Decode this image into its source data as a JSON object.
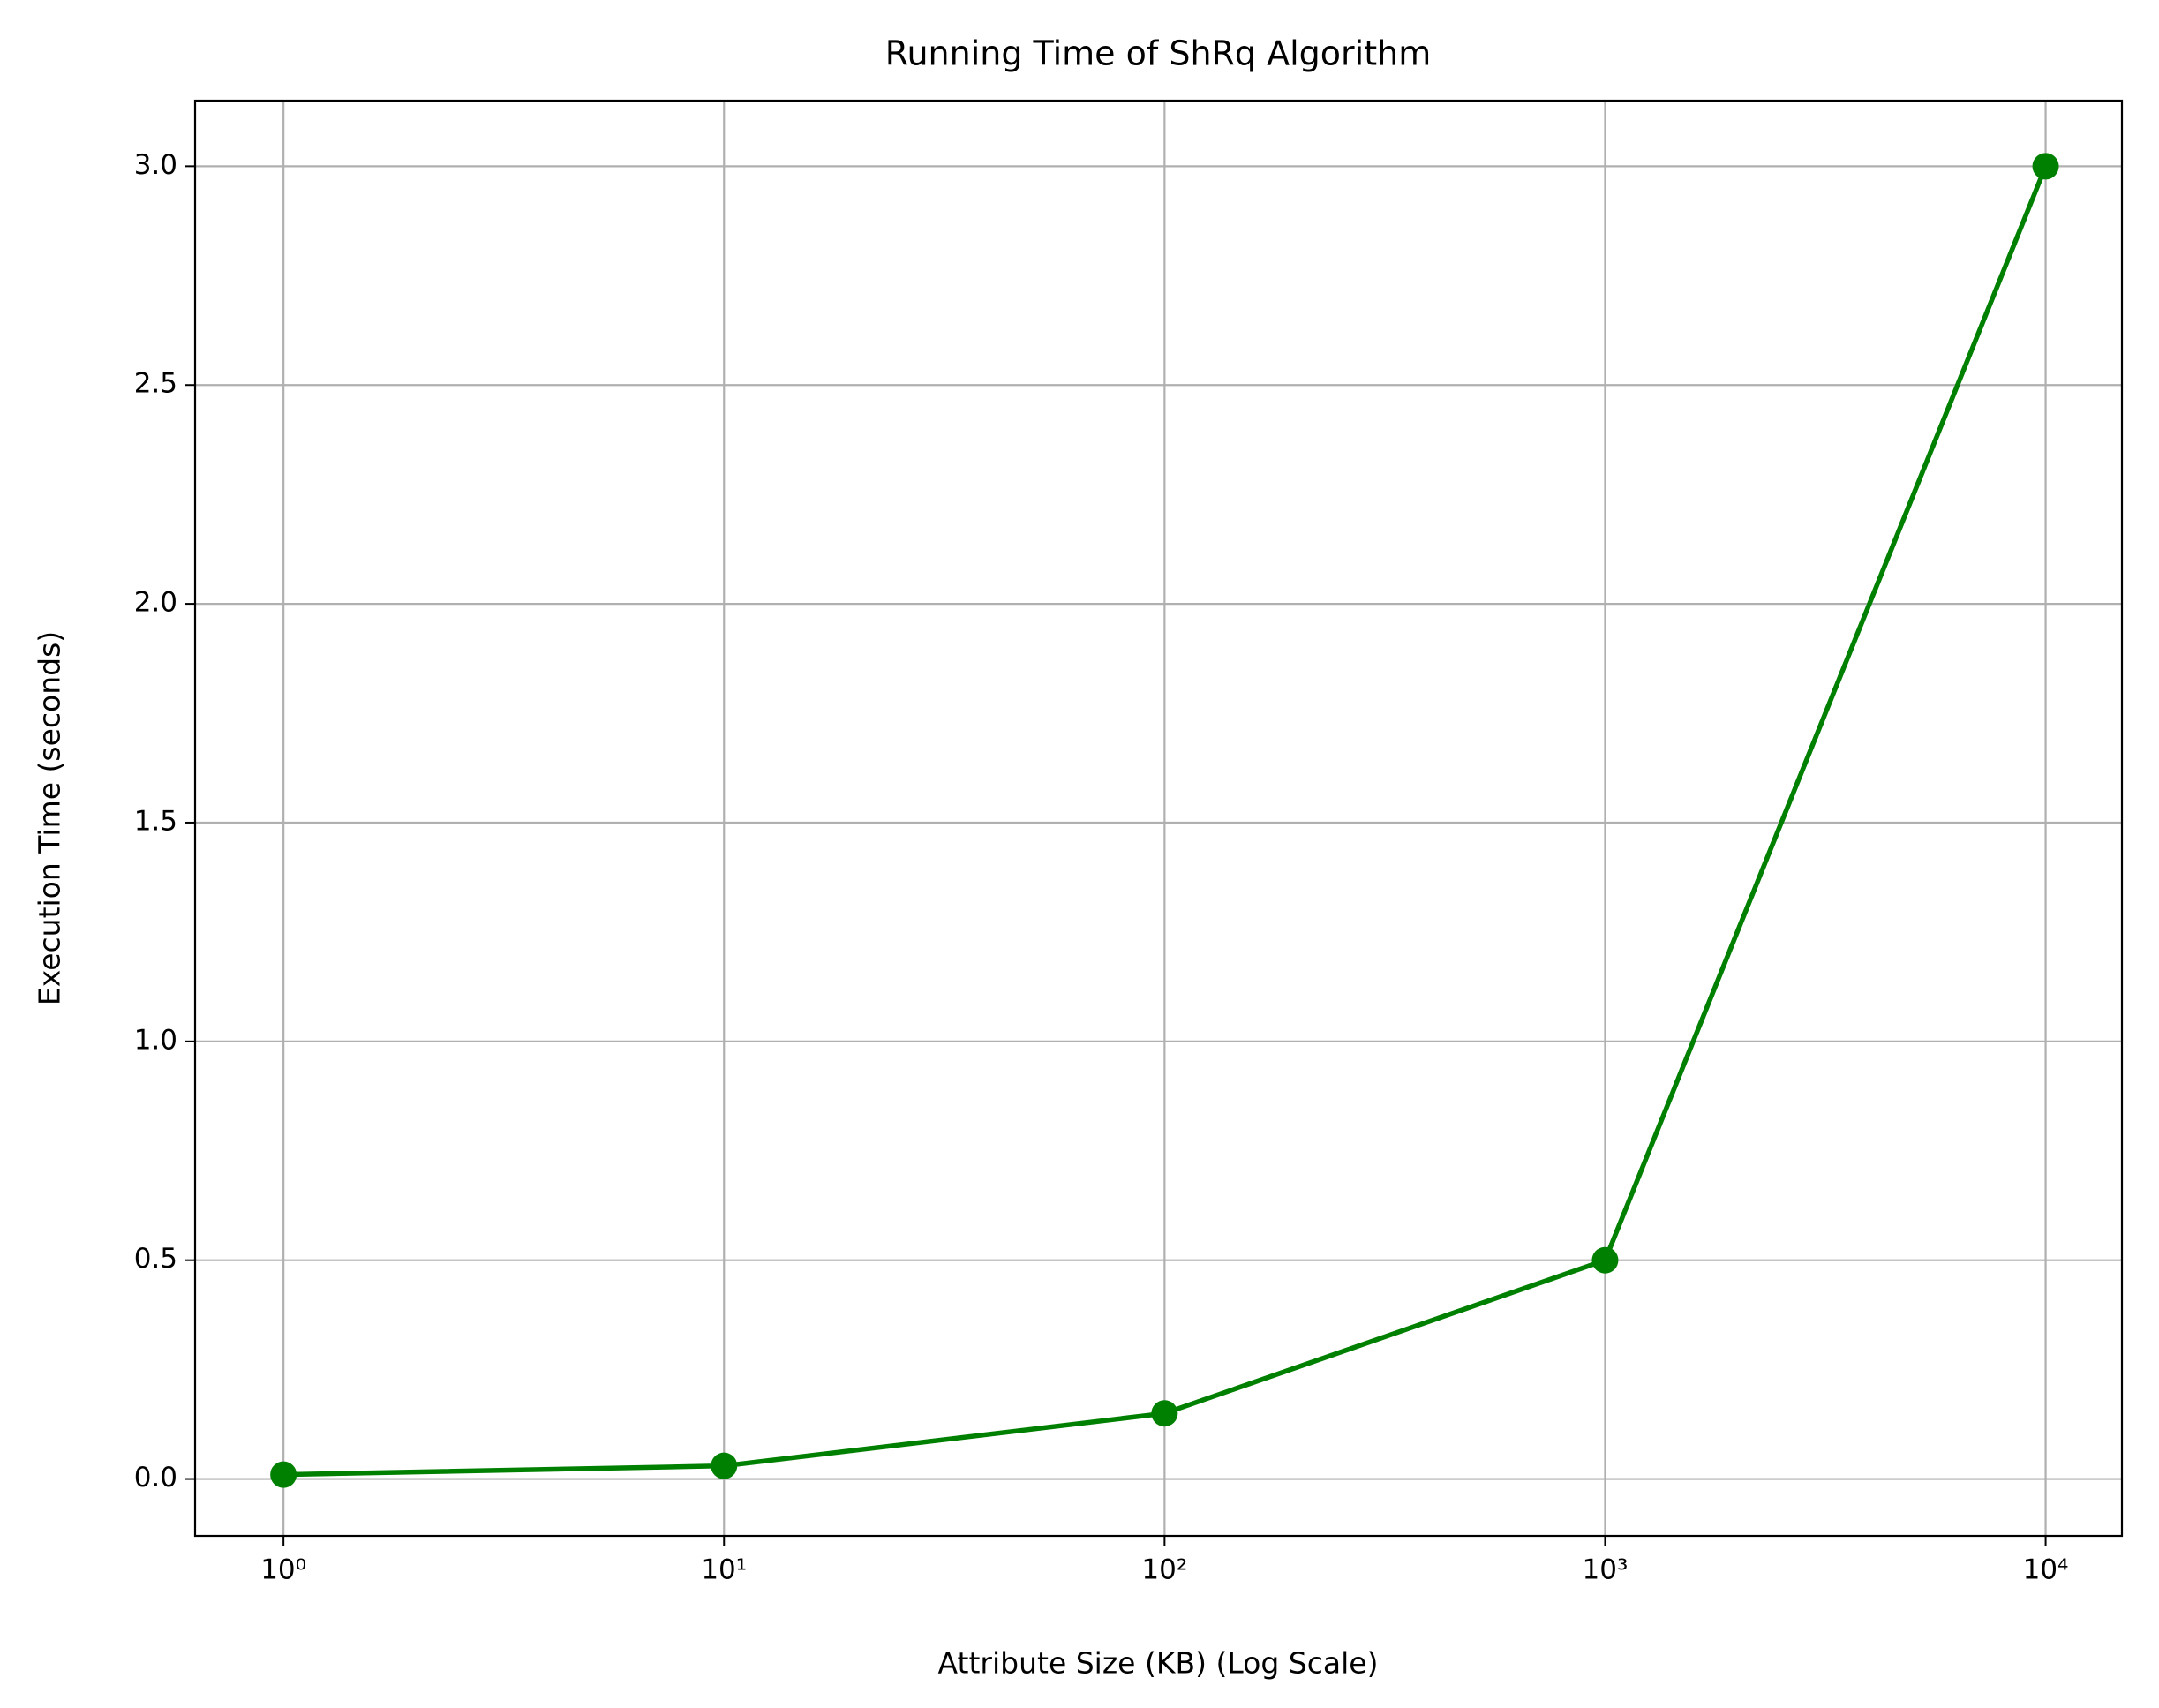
{
  "chart_data": {
    "type": "line",
    "title": "Running Time of ShRq Algorithm",
    "xlabel": "Attribute Size (KB) (Log Scale)",
    "ylabel": "Execution Time (seconds)",
    "x": [
      1,
      10,
      100,
      1000,
      10000
    ],
    "series": [
      {
        "name": "ShRq",
        "color": "#008000",
        "values": [
          0.01,
          0.03,
          0.15,
          0.5,
          3.0
        ]
      }
    ],
    "xscale": "log",
    "xlim": [
      0.63,
      14900
    ],
    "xticks": [
      {
        "value": 1,
        "label": "10⁰"
      },
      {
        "value": 10,
        "label": "10¹"
      },
      {
        "value": 100,
        "label": "10²"
      },
      {
        "value": 1000,
        "label": "10³"
      },
      {
        "value": 10000,
        "label": "10⁴"
      }
    ],
    "ylim": [
      -0.13,
      3.15
    ],
    "yticks": [
      {
        "value": 0,
        "label": "0.0"
      },
      0.5,
      {
        "value": 1,
        "label": "1.0"
      },
      1.5,
      {
        "value": 2,
        "label": "2.0"
      },
      2.5,
      {
        "value": 3,
        "label": "3.0"
      }
    ],
    "grid": true
  }
}
